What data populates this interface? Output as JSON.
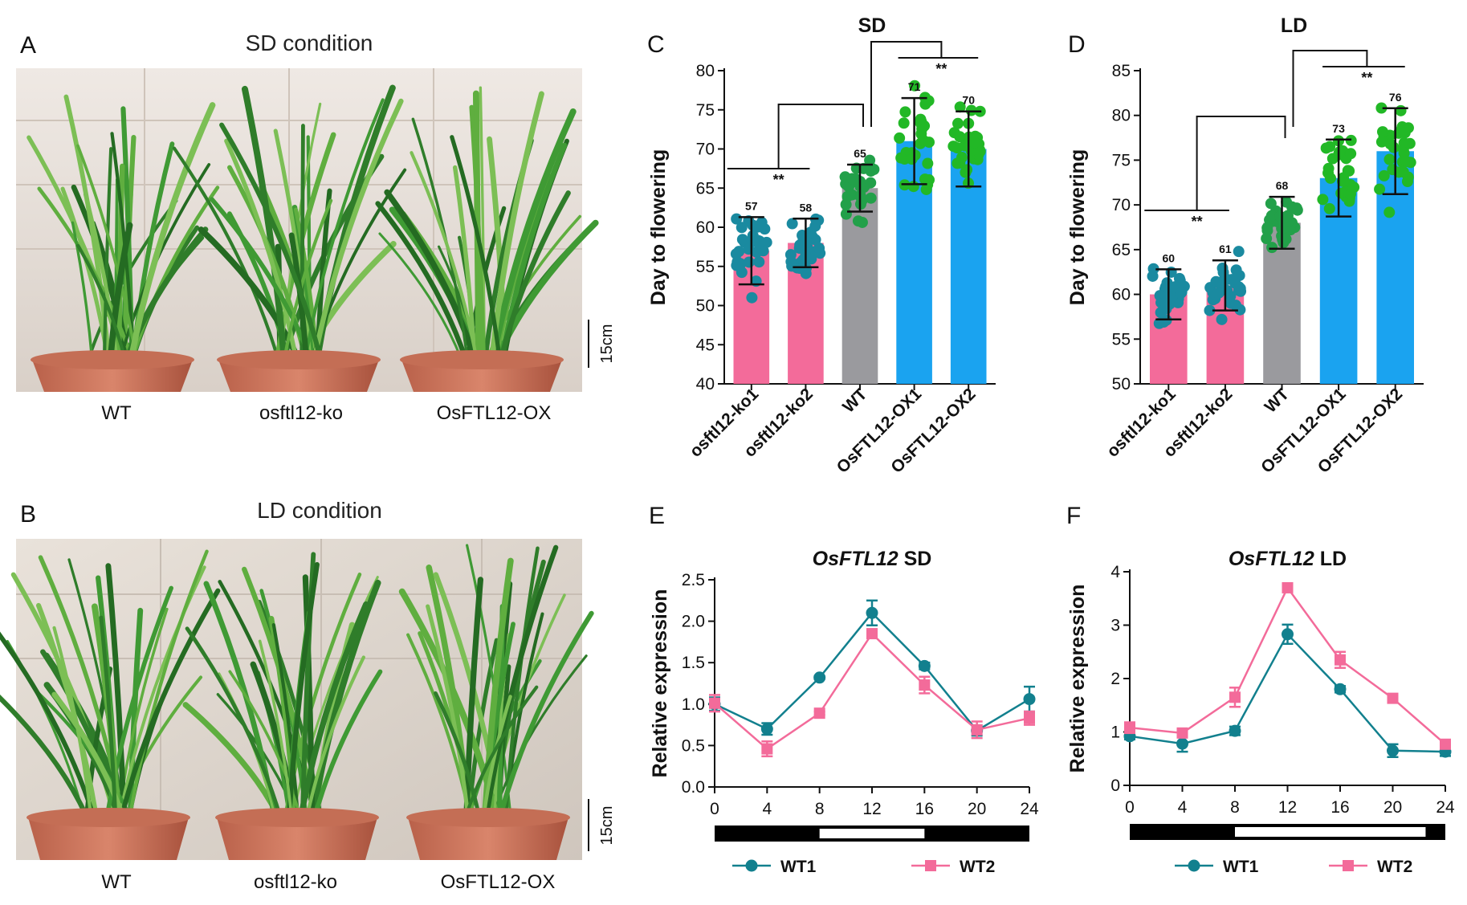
{
  "panels": {
    "A": {
      "letter": "A",
      "title": "SD condition",
      "labels": [
        "WT",
        "osftl12-ko",
        "OsFTL12-OX"
      ],
      "scale": "15cm"
    },
    "B": {
      "letter": "B",
      "title": "LD condition",
      "labels": [
        "WT",
        "osftl12-ko",
        "OsFTL12-OX"
      ],
      "scale": "15cm"
    }
  },
  "colors": {
    "ko": "#f36b9a",
    "wt": "#9a9a9e",
    "ox": "#1aa3f0",
    "dots_ko": "#1a8aa0",
    "dots_wt": "#22a049",
    "dots_ox": "#22b826",
    "wt1": "#12808e",
    "wt2": "#f36b9a"
  },
  "chart_data": [
    {
      "id": "C",
      "letter": "C",
      "type": "bar",
      "title": "SD",
      "ylabel": "Day to flowering",
      "ylim": [
        40,
        80
      ],
      "yticks": [
        40,
        45,
        50,
        55,
        60,
        65,
        70,
        75,
        80
      ],
      "categories": [
        "osftl12-ko1",
        "osftl12-ko2",
        "WT",
        "OsFTL12-OX1",
        "OsFTL12-OX2"
      ],
      "values": [
        57,
        58,
        65,
        71,
        70
      ],
      "value_labels": [
        "57",
        "58",
        "65",
        "71",
        "70"
      ],
      "sd": [
        4.3,
        3.1,
        3.0,
        5.5,
        4.8
      ],
      "significance": [
        "**",
        "**"
      ]
    },
    {
      "id": "D",
      "letter": "D",
      "type": "bar",
      "title": "LD",
      "ylabel": "Day to flowering",
      "ylim": [
        50,
        85
      ],
      "yticks": [
        50,
        55,
        60,
        65,
        70,
        75,
        80,
        85
      ],
      "categories": [
        "osftl12-ko1",
        "osftl12-ko2",
        "WT",
        "OsFTL12-OX1",
        "OsFTL12-OX2"
      ],
      "values": [
        60,
        61,
        68,
        73,
        76
      ],
      "value_labels": [
        "60",
        "61",
        "68",
        "73",
        "76"
      ],
      "sd": [
        2.8,
        2.8,
        2.9,
        4.3,
        4.8
      ],
      "significance": [
        "**",
        "**"
      ]
    },
    {
      "id": "E",
      "letter": "E",
      "type": "line",
      "title_gene": "OsFTL12",
      "title_cond": " SD",
      "ylabel": "Relative expression",
      "ylim": [
        0,
        2.5
      ],
      "yticks": [
        "0.0",
        "0.5",
        "1.0",
        "1.5",
        "2.0",
        "2.5"
      ],
      "x": [
        0,
        4,
        8,
        12,
        16,
        20,
        24
      ],
      "xticks": [
        "0",
        "4",
        "8",
        "12",
        "16",
        "20",
        "24"
      ],
      "light_period": [
        8,
        16
      ],
      "series": [
        {
          "name": "WT1",
          "values": [
            1.0,
            0.7,
            1.32,
            2.1,
            1.46,
            0.68,
            1.06
          ],
          "err": [
            0.08,
            0.07,
            0.02,
            0.15,
            0.04,
            0.06,
            0.15
          ]
        },
        {
          "name": "WT2",
          "values": [
            1.01,
            0.46,
            0.89,
            1.85,
            1.23,
            0.69,
            0.83
          ],
          "err": [
            0.1,
            0.09,
            0.02,
            0.05,
            0.1,
            0.1,
            0.08
          ]
        }
      ]
    },
    {
      "id": "F",
      "letter": "F",
      "type": "line",
      "title_gene": "OsFTL12",
      "title_cond": " LD",
      "ylabel": "Relative expression",
      "ylim": [
        0,
        4
      ],
      "yticks": [
        "0",
        "1",
        "2",
        "3",
        "4"
      ],
      "x": [
        0,
        4,
        8,
        12,
        16,
        20,
        24
      ],
      "xticks": [
        "0",
        "4",
        "8",
        "12",
        "16",
        "20",
        "24"
      ],
      "light_period": [
        8,
        22.5
      ],
      "series": [
        {
          "name": "WT1",
          "values": [
            0.92,
            0.78,
            1.02,
            2.83,
            1.8,
            0.65,
            0.63
          ],
          "err": [
            0.06,
            0.15,
            0.08,
            0.18,
            0.06,
            0.12,
            0.08
          ]
        },
        {
          "name": "WT2",
          "values": [
            1.08,
            0.98,
            1.65,
            3.7,
            2.35,
            1.63,
            0.77
          ],
          "err": [
            0.1,
            0.08,
            0.18,
            0.06,
            0.15,
            0.05,
            0.06
          ]
        }
      ]
    }
  ]
}
